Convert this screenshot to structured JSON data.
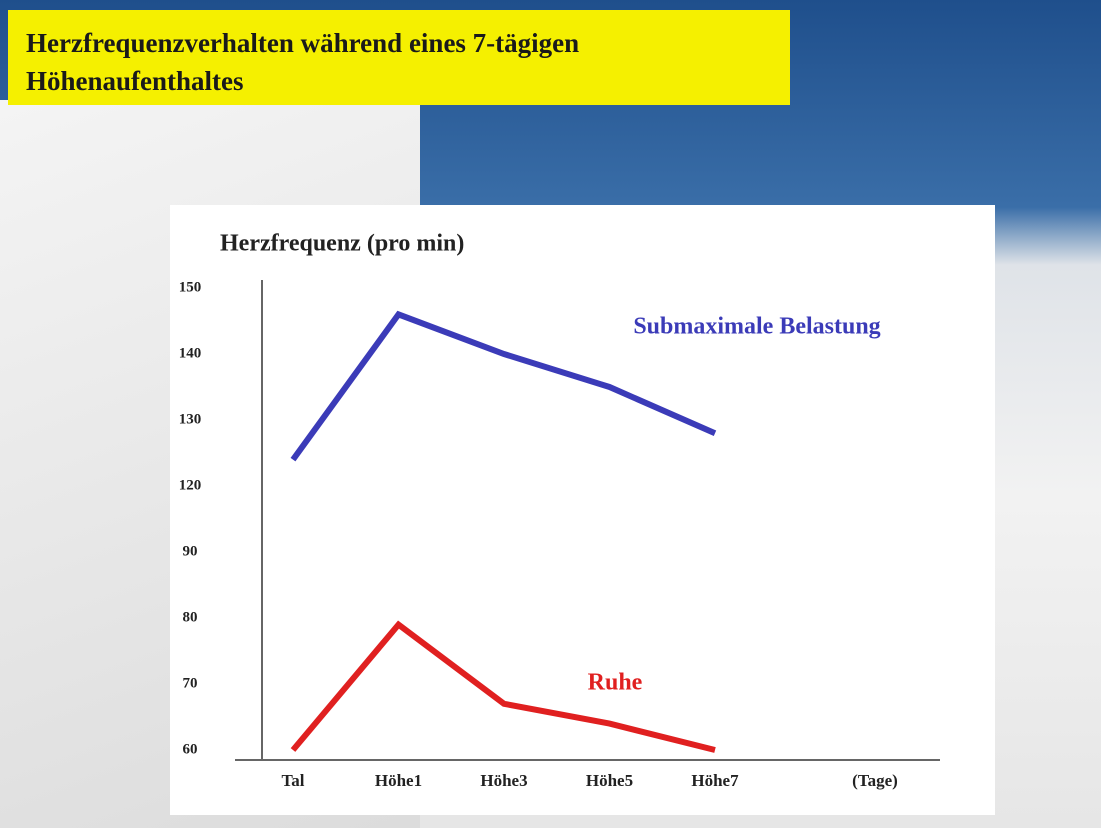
{
  "title": "Herzfrequenzverhalten während eines 7-tägigen Höhenaufenthaltes",
  "chart_data": {
    "type": "line",
    "y_label": "Herzfrequenz (pro min)",
    "x_unit": "(Tage)",
    "categories": [
      "Tal",
      "Höhe1",
      "Höhe3",
      "Höhe5",
      "Höhe7"
    ],
    "series": [
      {
        "name": "Submaximale Belastung",
        "color": "#3b3bb8",
        "values": [
          124,
          146,
          140,
          135,
          128
        ]
      },
      {
        "name": "Ruhe",
        "color": "#e02020",
        "values": [
          60,
          79,
          67,
          64,
          60
        ]
      }
    ],
    "ylim": [
      60,
      150
    ],
    "yticks": [
      60,
      70,
      80,
      90,
      120,
      130,
      140,
      150
    ],
    "grid": false
  }
}
